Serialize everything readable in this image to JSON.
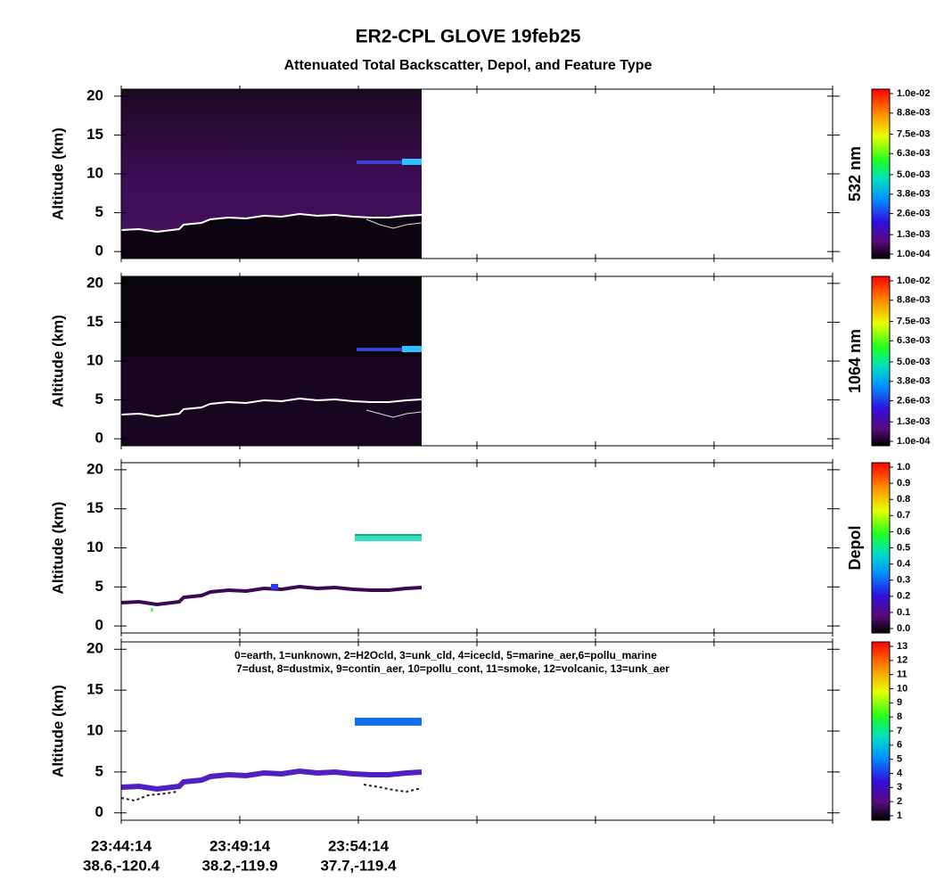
{
  "header": {
    "title": "ER2-CPL  GLOVE  19feb25",
    "subtitle": "Attenuated Total Backscatter, Depol, and Feature Type"
  },
  "x_axis": {
    "labels": [
      {
        "time": "23:44:14",
        "location": "38.6,-120.4"
      },
      {
        "time": "23:49:14",
        "location": "38.2,-119.9"
      },
      {
        "time": "23:54:14",
        "location": "37.7,-119.4"
      }
    ]
  },
  "chart_data": [
    {
      "type": "curtain",
      "ylabel": "Altitude (km)",
      "ylim": [
        -0.9,
        20.9
      ],
      "yticks": [
        0,
        5,
        10,
        15,
        20
      ],
      "colorbar": {
        "title": "532 nm",
        "lim": [
          0.0001,
          0.01
        ],
        "ticks": [
          {
            "value": 0.0001,
            "label": "1.0e-04"
          },
          {
            "value": 0.0013,
            "label": "1.3e-03"
          },
          {
            "value": 0.0026,
            "label": "2.6e-03"
          },
          {
            "value": 0.0038,
            "label": "3.8e-03"
          },
          {
            "value": 0.005,
            "label": "5.0e-03"
          },
          {
            "value": 0.0063,
            "label": "6.3e-03"
          },
          {
            "value": 0.0075,
            "label": "7.5e-03"
          },
          {
            "value": 0.0088,
            "label": "8.8e-03"
          },
          {
            "value": 0.01,
            "label": "1.0e-02"
          }
        ]
      }
    },
    {
      "type": "curtain",
      "ylabel": "Altitude (km)",
      "ylim": [
        -0.9,
        20.9
      ],
      "yticks": [
        0,
        5,
        10,
        15,
        20
      ],
      "colorbar": {
        "title": "1064 nm",
        "lim": [
          0.0001,
          0.01
        ],
        "ticks": [
          {
            "value": 0.0001,
            "label": "1.0e-04"
          },
          {
            "value": 0.0013,
            "label": "1.3e-03"
          },
          {
            "value": 0.0026,
            "label": "2.6e-03"
          },
          {
            "value": 0.0038,
            "label": "3.8e-03"
          },
          {
            "value": 0.005,
            "label": "5.0e-03"
          },
          {
            "value": 0.0063,
            "label": "6.3e-03"
          },
          {
            "value": 0.0075,
            "label": "7.5e-03"
          },
          {
            "value": 0.0088,
            "label": "8.8e-03"
          },
          {
            "value": 0.01,
            "label": "1.0e-02"
          }
        ]
      }
    },
    {
      "type": "curtain",
      "ylabel": "Altitude (km)",
      "ylim": [
        -0.9,
        20.9
      ],
      "yticks": [
        0,
        5,
        10,
        15,
        20
      ],
      "colorbar": {
        "title": "Depol",
        "lim": [
          0,
          1
        ],
        "ticks": [
          {
            "value": 0,
            "label": "0.0"
          },
          0.1,
          0.2,
          0.3,
          0.4,
          0.5,
          0.6,
          0.7,
          0.8,
          0.9,
          {
            "value": 1,
            "label": "1.0"
          }
        ]
      }
    },
    {
      "type": "curtain",
      "ylabel": "Altitude (km)",
      "ylim": [
        -0.9,
        20.9
      ],
      "yticks": [
        0,
        5,
        10,
        15,
        20
      ],
      "annotations": [
        "0=earth, 1=unknown, 2=H2Ocld, 3=unk_cld, 4=icecld, 5=marine_aer,6=pollu_marine",
        "7=dust, 8=dustmix, 9=contin_aer, 10=pollu_cont, 11=smoke, 12=volcanic, 13=unk_aer"
      ],
      "colorbar": {
        "title": "",
        "lim": [
          1,
          13
        ],
        "ticks": [
          1,
          2,
          3,
          4,
          5,
          6,
          7,
          8,
          9,
          10,
          11,
          12,
          13
        ]
      }
    }
  ]
}
